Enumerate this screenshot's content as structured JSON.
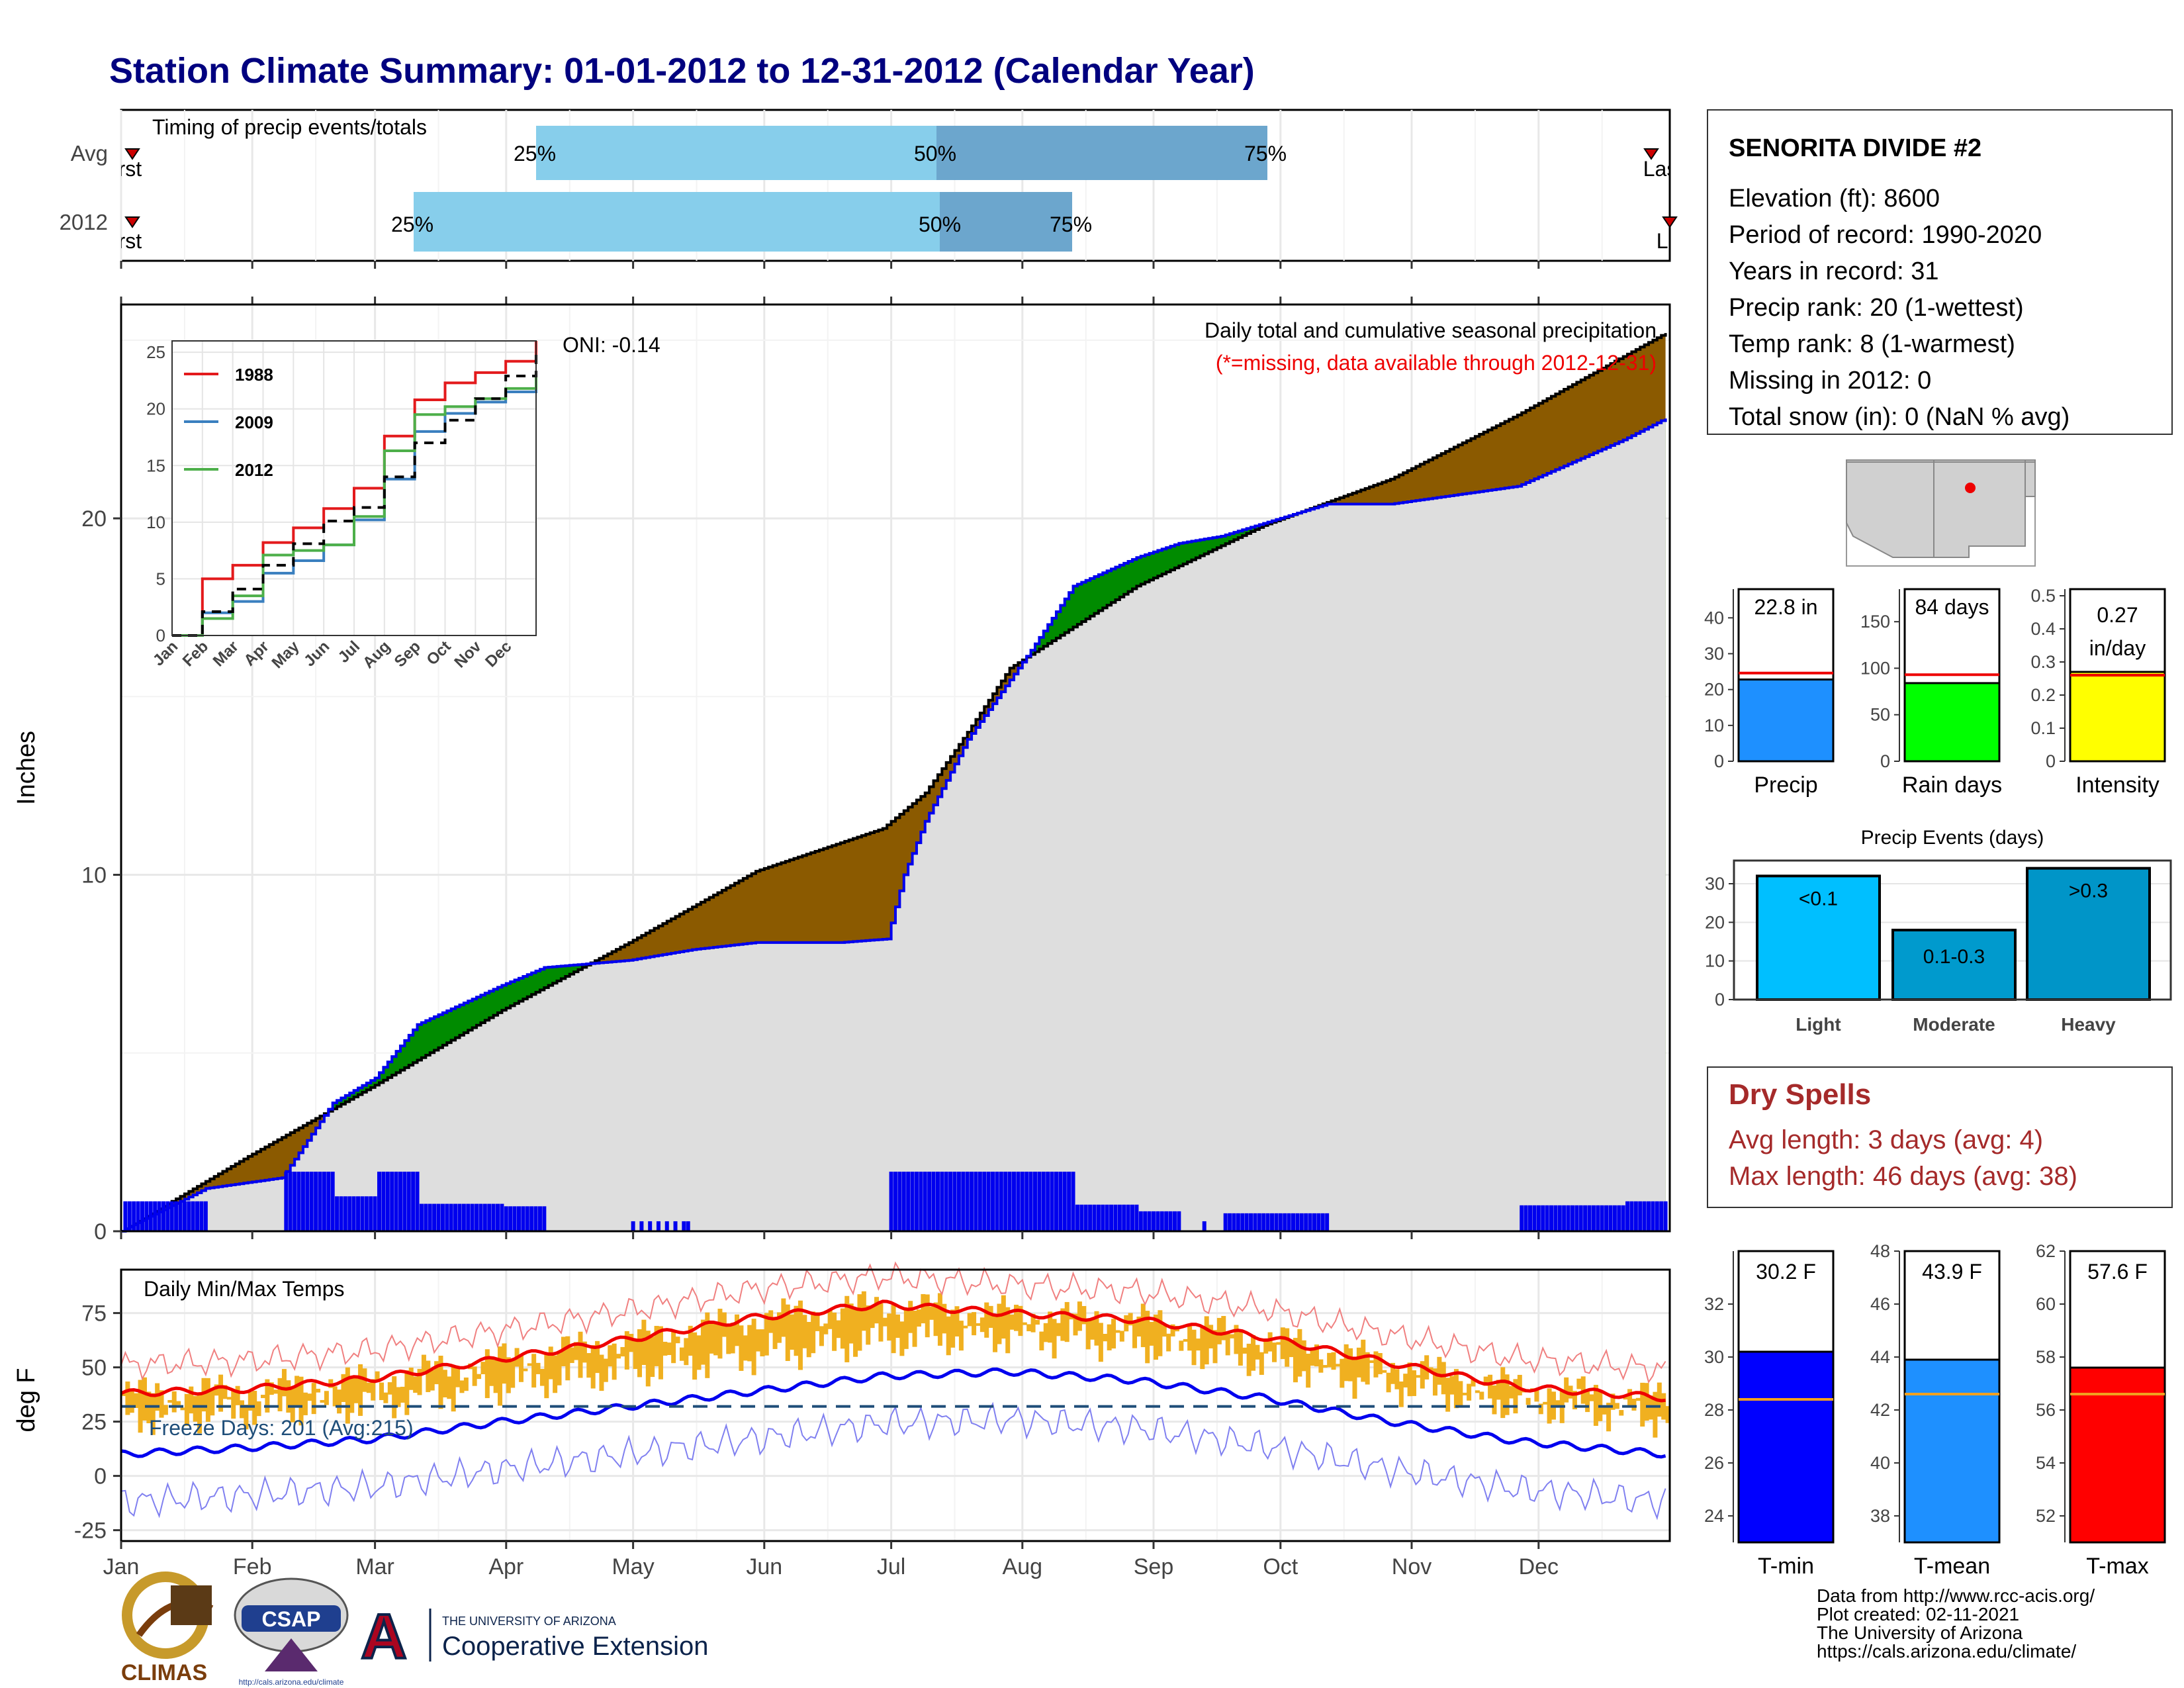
{
  "title": "Station Climate Summary: 01-01-2012 to 12-31-2012 (Calendar Year)",
  "months": [
    "Jan",
    "Feb",
    "Mar",
    "Apr",
    "May",
    "Jun",
    "Jul",
    "Aug",
    "Sep",
    "Oct",
    "Nov",
    "Dec"
  ],
  "timing": {
    "label": "Timing of precip events/totals",
    "rows": [
      "Avg",
      "2012"
    ],
    "first_label": "First",
    "last_label": "Last",
    "pct_labels": [
      "25%",
      "50%",
      "75%"
    ]
  },
  "station": {
    "name": "SENORITA DIVIDE #2",
    "lines": [
      "Elevation (ft): 8600",
      "Period of record: 1990-2020",
      "Years in record: 31",
      "Precip rank: 20 (1-wettest)",
      "Temp rank: 8 (1-warmest)",
      "Missing in 2012: 0",
      "Total snow (in): 0 (NaN % avg)"
    ]
  },
  "precip_panel": {
    "ylabel": "Inches",
    "oni": "ONI: -0.14",
    "caption1": "Daily total and cumulative seasonal precipitation",
    "caption2": "(*=missing, data available through 2012-12-31)",
    "legend": [
      "1988",
      "2009",
      "2012"
    ]
  },
  "temp_panel": {
    "ylabel": "deg F",
    "label": "Daily Min/Max Temps",
    "freeze": "Freeze Days: 201 (Avg:215)"
  },
  "summary_bars": [
    {
      "label": "Precip",
      "value_text": "22.8 in"
    },
    {
      "label": "Rain days",
      "value_text": "84 days"
    },
    {
      "label": "Intensity",
      "value_text": "0.27 in/day"
    }
  ],
  "events": {
    "title": "Precip Events (days)",
    "bars": [
      {
        "cat": "Light",
        "label": "<0.1"
      },
      {
        "cat": "Moderate",
        "label": "0.1-0.3"
      },
      {
        "cat": "Heavy",
        "label": ">0.3"
      }
    ]
  },
  "dry_spells": {
    "title": "Dry Spells",
    "avg": "Avg length: 3 days (avg: 4)",
    "max": "Max length: 46 days (avg: 38)"
  },
  "temp_bars": [
    {
      "label": "T-min",
      "value_text": "30.2 F"
    },
    {
      "label": "T-mean",
      "value_text": "43.9 F"
    },
    {
      "label": "T-max",
      "value_text": "57.6 F"
    }
  ],
  "credits": [
    "Data from http://www.rcc-acis.org/",
    "Plot created: 02-11-2021",
    "The University of Arizona",
    "https://cals.arizona.edu/climate/"
  ],
  "logos": {
    "climas": "CLIMAS",
    "csap": "CSAP",
    "csap_url": "http://cals.arizona.edu/climate",
    "ua_line1": "THE UNIVERSITY OF ARIZONA",
    "ua_line2": "Cooperative Extension",
    "ua_letter": "A"
  },
  "chart_data": [
    {
      "type": "area",
      "title": "Daily total and cumulative seasonal precipitation",
      "ylabel": "Inches",
      "ylim": [
        0,
        26
      ],
      "yticks": [
        0,
        10,
        20
      ],
      "x_months": [
        "Jan",
        "Feb",
        "Mar",
        "Apr",
        "May",
        "Jun",
        "Jul",
        "Aug",
        "Sep",
        "Oct",
        "Nov",
        "Dec"
      ],
      "avg_cumulative": {
        "day": [
          0,
          30,
          60,
          90,
          120,
          150,
          180,
          190,
          200,
          210,
          240,
          270,
          300,
          330,
          365
        ],
        "inches": [
          0,
          2.1,
          4.1,
          6.2,
          8.1,
          10.1,
          11.3,
          12.3,
          14.0,
          15.8,
          18.1,
          19.8,
          21.1,
          22.9,
          25.2
        ]
      },
      "obs_2012_cumulative": {
        "day": [
          0,
          20,
          38,
          50,
          60,
          70,
          90,
          100,
          120,
          135,
          150,
          170,
          181,
          185,
          190,
          200,
          215,
          225,
          240,
          250,
          260,
          285,
          300,
          330,
          355,
          365
        ],
        "inches": [
          0,
          1.2,
          1.5,
          3.6,
          4.3,
          5.8,
          6.9,
          7.4,
          7.6,
          7.9,
          8.1,
          8.1,
          8.2,
          10.0,
          11.5,
          13.8,
          16.3,
          18.1,
          18.9,
          19.3,
          19.5,
          20.4,
          20.4,
          20.9,
          22.2,
          22.8
        ]
      },
      "daily_note": "blue bars = daily precipitation totals"
    },
    {
      "type": "line",
      "title": "",
      "x_ticks": [
        "Jan",
        "Feb",
        "Mar",
        "Apr",
        "May",
        "Jun",
        "Jul",
        "Aug",
        "Sep",
        "Oct",
        "Nov",
        "Dec"
      ],
      "ylim": [
        0,
        26
      ],
      "yticks": [
        0,
        5,
        10,
        15,
        20,
        25
      ],
      "series": [
        {
          "name": "1988",
          "color": "#e31a1c",
          "month_index": [
            0,
            1,
            2,
            3,
            4,
            5,
            6,
            7,
            8,
            9,
            10,
            11,
            12
          ],
          "inches": [
            0,
            5.0,
            6.2,
            8.2,
            9.5,
            11.2,
            13.0,
            17.6,
            20.8,
            22.3,
            23.2,
            24.2,
            26.0
          ]
        },
        {
          "name": "2009",
          "color": "#3a7fbf",
          "month_index": [
            0,
            1,
            2,
            3,
            4,
            5,
            6,
            7,
            8,
            9,
            10,
            11,
            12
          ],
          "inches": [
            0,
            2.0,
            3.0,
            5.5,
            6.6,
            8.0,
            10.2,
            13.8,
            18.0,
            19.6,
            20.6,
            21.5,
            22.6
          ]
        },
        {
          "name": "2012",
          "color": "#4daf4a",
          "month_index": [
            0,
            1,
            2,
            3,
            4,
            5,
            6,
            7,
            8,
            9,
            10,
            11,
            12
          ],
          "inches": [
            0,
            1.5,
            3.5,
            7.1,
            7.5,
            8.0,
            10.5,
            16.3,
            19.5,
            20.2,
            20.9,
            21.8,
            22.8
          ]
        },
        {
          "name": "",
          "color": "#000000",
          "dashed": true,
          "month_index": [
            0,
            1,
            2,
            3,
            4,
            5,
            6,
            7,
            8,
            9,
            10,
            11,
            12
          ],
          "inches": [
            0,
            2.1,
            4.1,
            6.2,
            8.1,
            10.1,
            11.3,
            14.0,
            17.0,
            19.0,
            20.9,
            22.9,
            25.2
          ]
        }
      ]
    },
    {
      "type": "bar",
      "title": "",
      "categories": [
        "Precip",
        "Rain days",
        "Intensity"
      ],
      "values": [
        22.8,
        84,
        0.27
      ],
      "avg": [
        24.6,
        93,
        0.26
      ],
      "ylims": [
        [
          0,
          48
        ],
        [
          0,
          185
        ],
        [
          0,
          0.52
        ]
      ],
      "yticks": [
        [
          0,
          10,
          20,
          30,
          40
        ],
        [
          0,
          50,
          100,
          150
        ],
        [
          0,
          0.1,
          0.2,
          0.3,
          0.4,
          0.5
        ]
      ],
      "colors": [
        "#1e90ff",
        "#00ff00",
        "#ffff00"
      ]
    },
    {
      "type": "bar",
      "title": "Precip Events (days)",
      "categories": [
        "Light",
        "Moderate",
        "Heavy"
      ],
      "values": [
        32,
        18,
        34
      ],
      "ylim": [
        0,
        36
      ],
      "yticks": [
        0,
        10,
        20,
        30
      ],
      "colors": [
        "#00bfff",
        "#009acd",
        "#0095c8"
      ]
    },
    {
      "type": "line",
      "title": "Daily Min/Max Temps",
      "ylabel": "deg F",
      "ylim": [
        -30,
        95
      ],
      "yticks": [
        -25,
        0,
        25,
        50,
        75
      ],
      "freeze_line_f": 32,
      "avg_max": {
        "day": [
          0,
          30,
          60,
          90,
          120,
          150,
          180,
          210,
          240,
          270,
          300,
          330,
          365
        ],
        "f": [
          38,
          40,
          45,
          54,
          63,
          73,
          79,
          75,
          72,
          64,
          52,
          41,
          36
        ]
      },
      "avg_min": {
        "day": [
          0,
          30,
          60,
          90,
          120,
          150,
          180,
          210,
          240,
          270,
          300,
          330,
          365
        ],
        "f": [
          10,
          13,
          17,
          25,
          32,
          39,
          46,
          48,
          44,
          36,
          25,
          16,
          10
        ]
      },
      "daily_range_note": "orange bars = 2012 daily min-max range"
    },
    {
      "type": "bar",
      "title": "",
      "categories": [
        "T-min",
        "T-mean",
        "T-max"
      ],
      "values": [
        30.2,
        43.9,
        57.6
      ],
      "avg": [
        28.4,
        42.6,
        56.6
      ],
      "ylims": [
        [
          23,
          34
        ],
        [
          37,
          48
        ],
        [
          51,
          62
        ]
      ],
      "yticks": [
        [
          24,
          26,
          28,
          30,
          32
        ],
        [
          38,
          40,
          42,
          44,
          46,
          48
        ],
        [
          52,
          54,
          56,
          58,
          60,
          62
        ]
      ],
      "colors": [
        "#0000ff",
        "#1e90ff",
        "#ff0000"
      ]
    }
  ]
}
